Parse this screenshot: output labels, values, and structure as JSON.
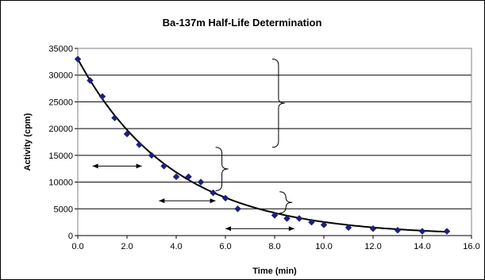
{
  "chart_data": {
    "type": "scatter",
    "title": "Ba-137m Half-Life Determination",
    "xlabel": "Time (min)",
    "ylabel": "Activity (cpm)",
    "xlim": [
      0,
      16
    ],
    "ylim": [
      0,
      35000
    ],
    "x_ticks": [
      "0.0",
      "2.0",
      "4.0",
      "6.0",
      "8.0",
      "10.0",
      "12.0",
      "14.0",
      "16.0"
    ],
    "y_ticks": [
      "0",
      "5000",
      "10000",
      "15000",
      "20000",
      "25000",
      "30000",
      "35000"
    ],
    "grid": "horizontal",
    "legend": "none",
    "marker_color": "#1f1f7a",
    "curve_color": "#000000",
    "series": [
      {
        "x": [
          0,
          0.5,
          1.0,
          1.5,
          2.0,
          2.5,
          3.0,
          3.5,
          4.0,
          4.5,
          5.0,
          5.5,
          6.0,
          6.5,
          8.0,
          8.5,
          9.0,
          9.5,
          10.0,
          11.0,
          12.0,
          13.0,
          14.0,
          15.0
        ],
        "y": [
          33000,
          29000,
          26000,
          22000,
          19000,
          17000,
          15000,
          13000,
          11000,
          11000,
          10000,
          8000,
          7000,
          5000,
          3800,
          3200,
          3200,
          2500,
          2000,
          1500,
          1300,
          1000,
          800,
          800
        ]
      }
    ],
    "fit_curve": {
      "type": "exponential",
      "a": 33000,
      "k": 0.2563,
      "x_range": [
        0,
        15
      ]
    },
    "annotations": {
      "arrows": [
        {
          "y": 13000,
          "x_from": 0.6,
          "x_to": 2.6
        },
        {
          "y": 6500,
          "x_from": 3.3,
          "x_to": 5.6
        },
        {
          "y": 1300,
          "x_from": 6.0,
          "x_to": 8.8
        }
      ],
      "braces": [
        {
          "x": 7.9,
          "y_from": 16500,
          "y_to": 33000
        },
        {
          "x": 5.6,
          "y_from": 8400,
          "y_to": 16500
        },
        {
          "x": 8.2,
          "y_from": 4200,
          "y_to": 8200
        }
      ]
    }
  }
}
